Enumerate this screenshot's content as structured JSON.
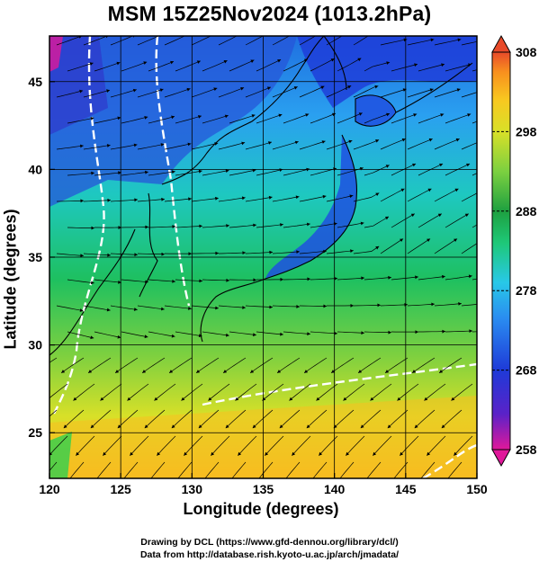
{
  "title": "MSM 15Z25Nov2024 (1013.2hPa)",
  "map": {
    "xlabel": "Longitude (degrees)",
    "ylabel": "Latitude  (degrees)",
    "x_ticks": [
      "120",
      "125",
      "130",
      "135",
      "140",
      "145",
      "150"
    ],
    "y_ticks": [
      "25",
      "30",
      "35",
      "40",
      "45"
    ],
    "lon_range": [
      120,
      150
    ],
    "lat_range": [
      22.4,
      47.6
    ],
    "field": "temperature",
    "grid": true,
    "overlay": "streamlines"
  },
  "colorbar": {
    "labels": [
      "308",
      "298",
      "288",
      "278",
      "268",
      "258"
    ],
    "range": [
      258,
      308
    ],
    "colors": [
      "#e0189a",
      "#5a22c8",
      "#1e3ad8",
      "#2a8cf0",
      "#28c8e8",
      "#1ec878",
      "#1ea040",
      "#7cd040",
      "#d8e028",
      "#f8c820",
      "#f8901e",
      "#e84a2a"
    ]
  },
  "credits": {
    "line1": "Drawing by DCL (https://www.gfd-dennou.org/library/dcl/)",
    "line2": "Data from http://database.rish.kyoto-u.ac.jp/arch/jmadata/"
  }
}
